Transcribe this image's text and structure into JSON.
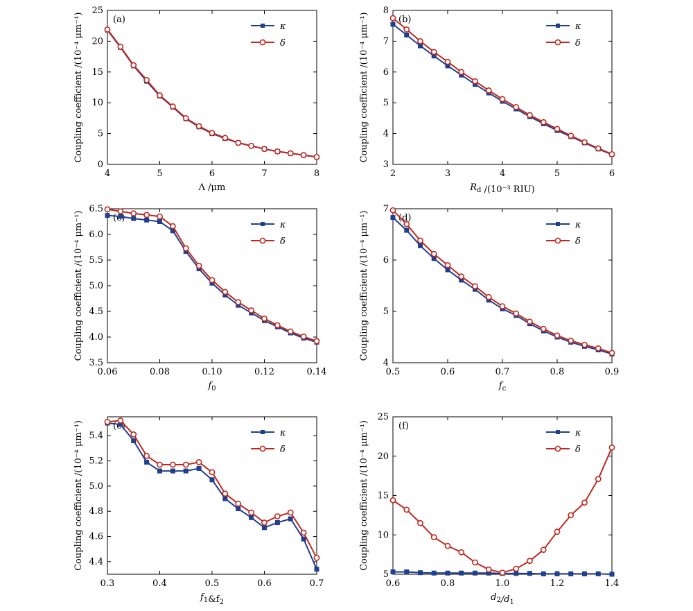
{
  "figure": {
    "colors": {
      "kappa": "#1f3f8f",
      "delta": "#c0281f",
      "axis": "#000000"
    }
  },
  "chart_data": [
    {
      "type": "line",
      "panel": "(a)",
      "ylabel": "Coupling coefficient /(10⁻⁴ μm⁻¹)",
      "xlabel": "Λ /μm",
      "xlim": [
        4,
        8
      ],
      "ylim": [
        0,
        25
      ],
      "xticks": [
        4,
        5,
        6,
        7,
        8
      ],
      "yticks": [
        0,
        5,
        10,
        15,
        20,
        25
      ],
      "x": [
        4.0,
        4.25,
        4.5,
        4.75,
        5.0,
        5.25,
        5.5,
        5.75,
        6.0,
        6.25,
        6.5,
        6.75,
        7.0,
        7.25,
        7.5,
        7.75,
        8.0
      ],
      "series": [
        {
          "name": "κ",
          "values": [
            21.8,
            19.0,
            16.0,
            13.5,
            11.1,
            9.3,
            7.4,
            6.1,
            5.0,
            4.2,
            3.5,
            3.0,
            2.5,
            2.1,
            1.8,
            1.5,
            1.2
          ]
        },
        {
          "name": "δ",
          "values": [
            21.9,
            19.1,
            16.1,
            13.7,
            11.2,
            9.4,
            7.5,
            6.2,
            5.1,
            4.3,
            3.5,
            3.0,
            2.5,
            2.1,
            1.8,
            1.5,
            1.2
          ]
        }
      ],
      "legend": "top-right"
    },
    {
      "type": "line",
      "panel": "(b)",
      "ylabel": "Coupling coefficient /(10⁻⁴ μm⁻¹)",
      "xlabel": "R_d /(10⁻³ RIU)",
      "xlim": [
        2,
        6
      ],
      "ylim": [
        3,
        8
      ],
      "xticks": [
        2,
        3,
        4,
        5,
        6
      ],
      "yticks": [
        3,
        4,
        5,
        6,
        7,
        8
      ],
      "x": [
        2.0,
        2.25,
        2.5,
        2.75,
        3.0,
        3.25,
        3.5,
        3.75,
        4.0,
        4.25,
        4.5,
        4.75,
        5.0,
        5.25,
        5.5,
        5.75,
        6.0
      ],
      "series": [
        {
          "name": "κ",
          "values": [
            7.55,
            7.2,
            6.85,
            6.52,
            6.2,
            5.9,
            5.6,
            5.32,
            5.05,
            4.8,
            4.55,
            4.32,
            4.1,
            3.9,
            3.7,
            3.5,
            3.32
          ]
        },
        {
          "name": "δ",
          "values": [
            7.75,
            7.38,
            7.0,
            6.65,
            6.33,
            6.0,
            5.7,
            5.4,
            5.12,
            4.86,
            4.6,
            4.37,
            4.15,
            3.93,
            3.72,
            3.52,
            3.33
          ]
        }
      ],
      "legend": "top-right"
    },
    {
      "type": "line",
      "panel": "(c)",
      "ylabel": "Coupling coefficient /(10⁻⁴ μm⁻¹)",
      "xlabel": "f_0",
      "xlim": [
        0.06,
        0.14
      ],
      "ylim": [
        3.5,
        6.5
      ],
      "xticks": [
        "0.06",
        "0.08",
        "0.10",
        "0.12",
        "0.14"
      ],
      "yticks": [
        "3.5",
        "4.0",
        "4.5",
        "5.0",
        "5.5",
        "6.0",
        "6.5"
      ],
      "x": [
        0.06,
        0.065,
        0.07,
        0.075,
        0.08,
        0.085,
        0.09,
        0.095,
        0.1,
        0.105,
        0.11,
        0.115,
        0.12,
        0.125,
        0.13,
        0.135,
        0.14
      ],
      "series": [
        {
          "name": "κ",
          "values": [
            6.37,
            6.35,
            6.31,
            6.28,
            6.25,
            6.07,
            5.67,
            5.33,
            5.05,
            4.82,
            4.62,
            4.47,
            4.32,
            4.2,
            4.08,
            3.98,
            3.9
          ]
        },
        {
          "name": "δ",
          "values": [
            6.49,
            6.45,
            6.41,
            6.38,
            6.35,
            6.16,
            5.73,
            5.39,
            5.11,
            4.88,
            4.68,
            4.52,
            4.36,
            4.23,
            4.11,
            4.01,
            3.92
          ]
        }
      ],
      "legend": "top-right"
    },
    {
      "type": "line",
      "panel": "(d)",
      "ylabel": "Coupling coefficient /(10⁻⁴ μm⁻¹)",
      "xlabel": "f_c",
      "xlim": [
        0.5,
        0.9
      ],
      "ylim": [
        4,
        7
      ],
      "xticks": [
        "0.5",
        "0.6",
        "0.7",
        "0.8",
        "0.9"
      ],
      "yticks": [
        "4",
        "5",
        "6",
        "7"
      ],
      "x": [
        0.5,
        0.525,
        0.55,
        0.575,
        0.6,
        0.625,
        0.65,
        0.675,
        0.7,
        0.725,
        0.75,
        0.775,
        0.8,
        0.825,
        0.85,
        0.875,
        0.9
      ],
      "series": [
        {
          "name": "κ",
          "values": [
            6.83,
            6.58,
            6.28,
            6.03,
            5.81,
            5.61,
            5.43,
            5.22,
            5.05,
            4.92,
            4.76,
            4.62,
            4.5,
            4.4,
            4.32,
            4.25,
            4.17
          ]
        },
        {
          "name": "δ",
          "values": [
            6.97,
            6.7,
            6.38,
            6.12,
            5.9,
            5.68,
            5.49,
            5.28,
            5.1,
            4.96,
            4.8,
            4.66,
            4.53,
            4.43,
            4.35,
            4.28,
            4.19
          ]
        }
      ],
      "legend": "top-right"
    },
    {
      "type": "line",
      "panel": "(e)",
      "ylabel": "Coupling coefficient /(10⁻⁴ μm⁻¹)",
      "xlabel": "f_1&f_2",
      "xlim": [
        0.3,
        0.7
      ],
      "ylim": [
        4.3,
        5.55
      ],
      "xticks": [
        "0.3",
        "0.4",
        "0.5",
        "0.6",
        "0.7"
      ],
      "yticks": [
        "4.4",
        "4.6",
        "4.8",
        "5.0",
        "5.2",
        "5.4"
      ],
      "x": [
        0.3,
        0.325,
        0.35,
        0.375,
        0.4,
        0.425,
        0.45,
        0.475,
        0.5,
        0.525,
        0.55,
        0.575,
        0.6,
        0.625,
        0.65,
        0.675,
        0.7
      ],
      "series": [
        {
          "name": "κ",
          "values": [
            5.5,
            5.49,
            5.36,
            5.19,
            5.12,
            5.12,
            5.12,
            5.14,
            5.05,
            4.9,
            4.82,
            4.75,
            4.67,
            4.71,
            4.74,
            4.58,
            4.34
          ]
        },
        {
          "name": "δ",
          "values": [
            5.51,
            5.52,
            5.41,
            5.24,
            5.17,
            5.17,
            5.17,
            5.19,
            5.11,
            4.94,
            4.86,
            4.79,
            4.71,
            4.76,
            4.79,
            4.63,
            4.43
          ]
        }
      ],
      "legend": "top-right"
    },
    {
      "type": "line",
      "panel": "(f)",
      "ylabel": "Coupling coefficient /(10⁻⁴ μm⁻¹)",
      "xlabel": "d_2/d_1",
      "xlim": [
        0.6,
        1.4
      ],
      "ylim": [
        5,
        25
      ],
      "xticks": [
        "0.6",
        "0.8",
        "1.0",
        "1.2",
        "1.4"
      ],
      "yticks": [
        "5",
        "10",
        "15",
        "20",
        "25"
      ],
      "x": [
        0.6,
        0.65,
        0.7,
        0.75,
        0.8,
        0.85,
        0.9,
        0.95,
        1.0,
        1.05,
        1.1,
        1.15,
        1.2,
        1.25,
        1.3,
        1.35,
        1.4
      ],
      "series": [
        {
          "name": "κ",
          "values": [
            5.3,
            5.3,
            5.2,
            5.15,
            5.15,
            5.15,
            5.15,
            5.15,
            5.1,
            5.1,
            5.1,
            5.05,
            5.05,
            5.05,
            5.05,
            5.05,
            5.0
          ]
        },
        {
          "name": "δ",
          "values": [
            14.4,
            13.2,
            11.5,
            9.7,
            8.6,
            7.8,
            6.5,
            5.6,
            5.2,
            5.7,
            6.7,
            8.1,
            10.4,
            12.5,
            14.1,
            17.1,
            21.1
          ]
        }
      ],
      "legend": "top-right"
    }
  ]
}
